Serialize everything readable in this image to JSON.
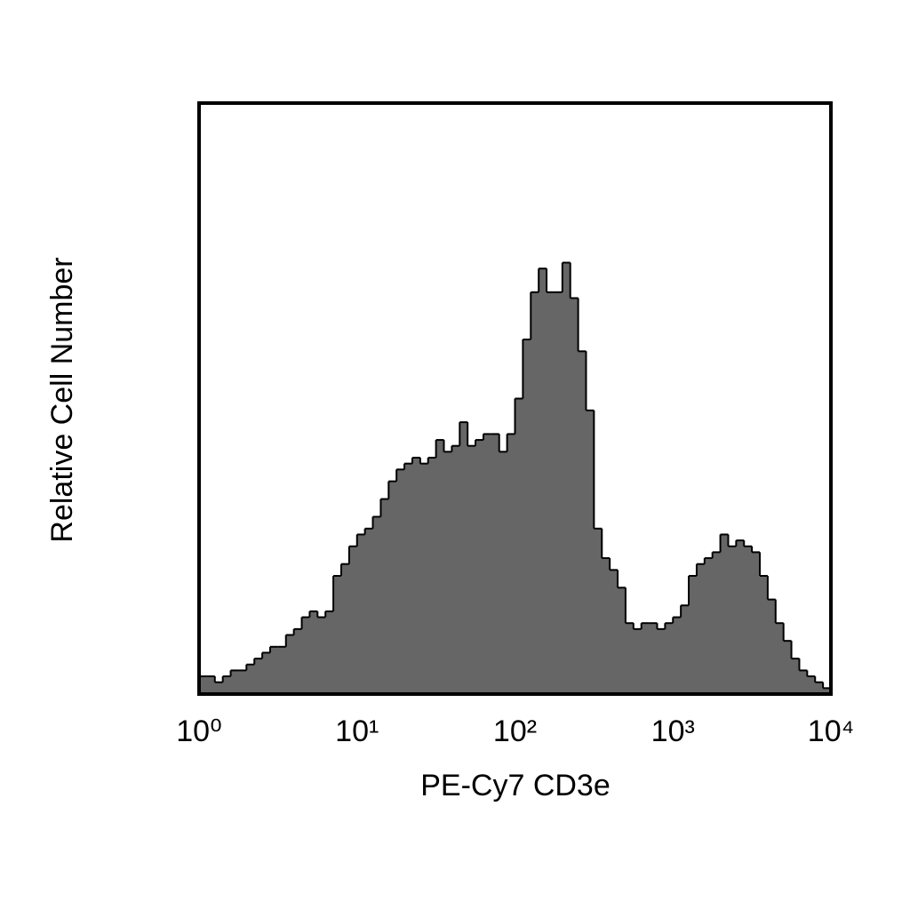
{
  "chart_data": {
    "type": "histogram",
    "xlabel": "PE-Cy7 CD3e",
    "ylabel": "Relative Cell Number",
    "xscale": "log",
    "xlim": [
      1,
      10000
    ],
    "xticks": [
      {
        "value": 1,
        "label": "10⁰"
      },
      {
        "value": 10,
        "label": "10¹"
      },
      {
        "value": 100,
        "label": "10²"
      },
      {
        "value": 1000,
        "label": "10³"
      },
      {
        "value": 10000,
        "label": "10⁴"
      }
    ],
    "ylim": [
      0,
      100
    ],
    "color": "#666666",
    "edgecolor": "#000000",
    "bins": [
      1,
      1.122,
      1.259,
      1.413,
      1.585,
      1.778,
      1.995,
      2.239,
      2.512,
      2.818,
      3.162,
      3.548,
      3.981,
      4.467,
      5.012,
      5.623,
      6.31,
      7.079,
      7.943,
      8.913,
      10,
      11.22,
      12.59,
      14.13,
      15.85,
      17.78,
      19.95,
      22.39,
      25.12,
      28.18,
      31.62,
      35.48,
      39.81,
      44.67,
      50.12,
      56.23,
      63.1,
      70.79,
      79.43,
      89.13,
      100,
      112.2,
      125.9,
      141.3,
      158.5,
      177.8,
      199.5,
      223.9,
      251.2,
      281.8,
      316.2,
      354.8,
      398.1,
      446.7,
      501.2,
      562.3,
      631,
      707.9,
      794.3,
      891.3,
      1000,
      1122,
      1259,
      1413,
      1585,
      1778,
      1995,
      2239,
      2512,
      2818,
      3162,
      3548,
      3981,
      4467,
      5012,
      5623,
      6310,
      7079,
      7943,
      8913,
      10000
    ],
    "counts": [
      3,
      3,
      2,
      3,
      4,
      4,
      5,
      6,
      7,
      8,
      8,
      10,
      11,
      13,
      14,
      13,
      14,
      20,
      22,
      25,
      27,
      28,
      30,
      33,
      36,
      38,
      39,
      40,
      39,
      40,
      43,
      41,
      42,
      46,
      42,
      43,
      44,
      44,
      41,
      44,
      50,
      60,
      68,
      72,
      68,
      68,
      73,
      67,
      58,
      48,
      28,
      23,
      21,
      18,
      12,
      11,
      12,
      12,
      11,
      12,
      13,
      15,
      20,
      22,
      23,
      24,
      27,
      25,
      26,
      25,
      24,
      20,
      16,
      12,
      9,
      6,
      4,
      3,
      2,
      1
    ]
  }
}
